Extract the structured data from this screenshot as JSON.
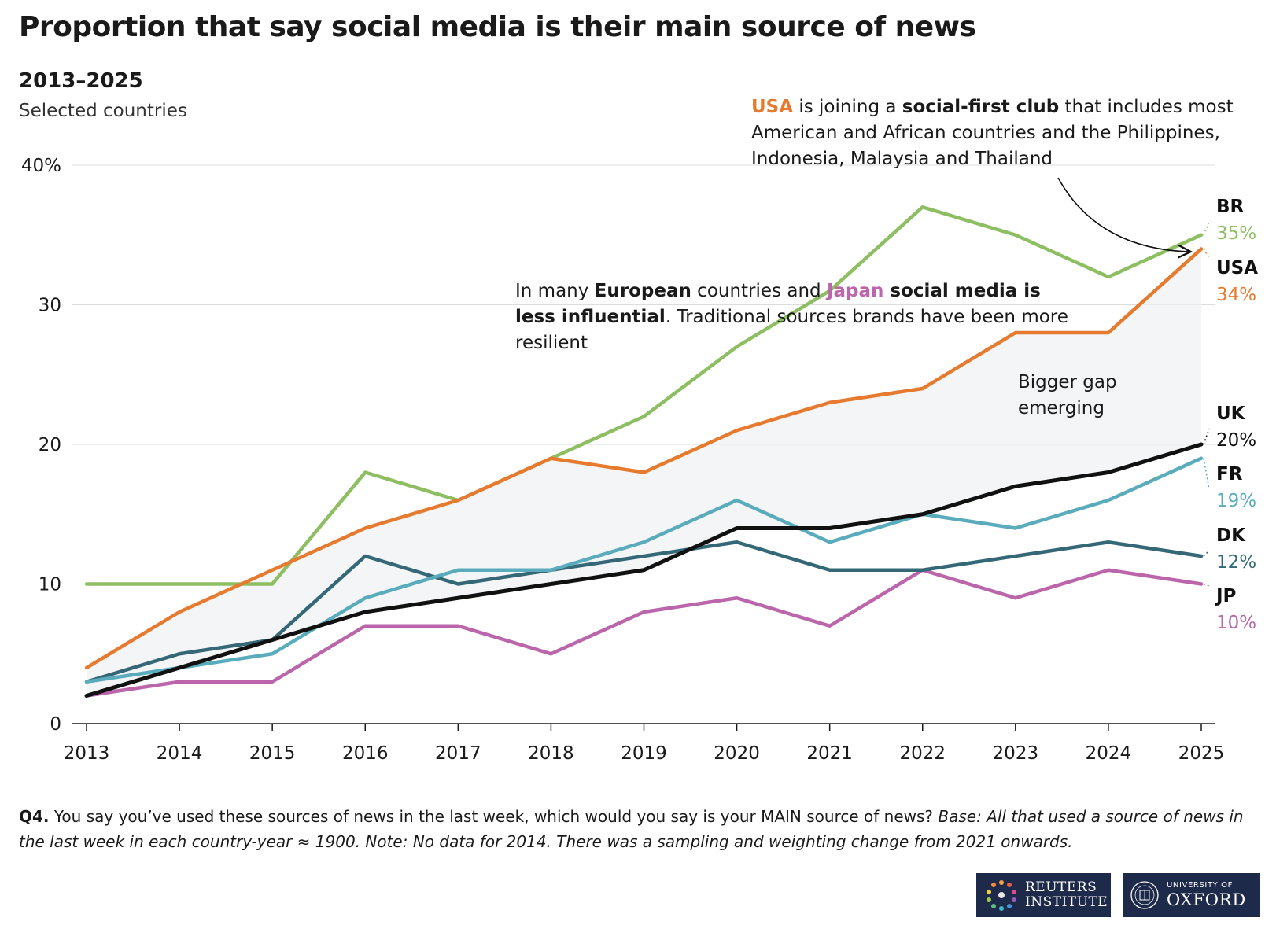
{
  "header": {
    "title": "Proportion that say social media is their main source of news",
    "subtitle": "2013–2025",
    "description": "Selected countries"
  },
  "annotations": {
    "usa_country": "USA",
    "usa_text1": " is joining a ",
    "usa_bold": "social-first club",
    "usa_text2": " that includes most American and African countries and the Philippines, Indonesia, Malaysia and Thailand",
    "eu_text1": "In many ",
    "eu_bold1": "European",
    "eu_text2": " countries and ",
    "eu_country": "Japan",
    "eu_bold2": " social media is less influential",
    "eu_text3": ". Traditional sources brands have been more resilient",
    "gap": "Bigger gap emerging"
  },
  "chart_data": {
    "type": "line",
    "x": [
      "2013",
      "2014",
      "2015",
      "2016",
      "2017",
      "2018",
      "2019",
      "2020",
      "2021",
      "2022",
      "2023",
      "2024",
      "2025"
    ],
    "ylim": [
      0,
      40
    ],
    "yticks": [
      0,
      10,
      20,
      30,
      40
    ],
    "ytick_labels": [
      "0",
      "10",
      "20",
      "30",
      "40%"
    ],
    "grid": true,
    "shaded_band": "between USA and UK",
    "series": [
      {
        "name": "BR",
        "label": "35%",
        "color": "#8dbf62",
        "values": [
          10,
          10,
          10,
          18,
          16,
          19,
          22,
          27,
          31,
          37,
          35,
          32,
          35
        ]
      },
      {
        "name": "USA",
        "label": "34%",
        "color": "#e67a2e",
        "values": [
          4,
          8,
          11,
          14,
          16,
          19,
          18,
          21,
          23,
          24,
          28,
          28,
          34
        ]
      },
      {
        "name": "UK",
        "label": "20%",
        "color": "#111111",
        "values": [
          2,
          4,
          6,
          8,
          9,
          10,
          11,
          14,
          14,
          15,
          17,
          18,
          20
        ]
      },
      {
        "name": "FR",
        "label": "19%",
        "color": "#5aacbc",
        "values": [
          3,
          4,
          5,
          9,
          11,
          11,
          13,
          16,
          13,
          15,
          14,
          16,
          19
        ]
      },
      {
        "name": "DK",
        "label": "12%",
        "color": "#356877",
        "values": [
          3,
          5,
          6,
          12,
          10,
          11,
          12,
          13,
          11,
          11,
          12,
          13,
          12
        ]
      },
      {
        "name": "JP",
        "label": "10%",
        "color": "#bb66aa",
        "values": [
          2,
          3,
          3,
          7,
          7,
          5,
          8,
          9,
          7,
          11,
          9,
          11,
          10
        ]
      }
    ]
  },
  "footnote": {
    "q": "Q4.",
    "text": " You say you’ve used these sources of news in the last week, which would you say is your MAIN source of news? ",
    "italic": "Base: All that used a source of news in the last week in each country-year ≈ 1900. Note: No data for 2014. There was a sampling and weighting change from 2021 onwards."
  },
  "logos": {
    "reuters_line1": "REUTERS",
    "reuters_line2": "INSTITUTE",
    "oxford_line1": "UNIVERSITY OF",
    "oxford_line2": "OXFORD"
  }
}
